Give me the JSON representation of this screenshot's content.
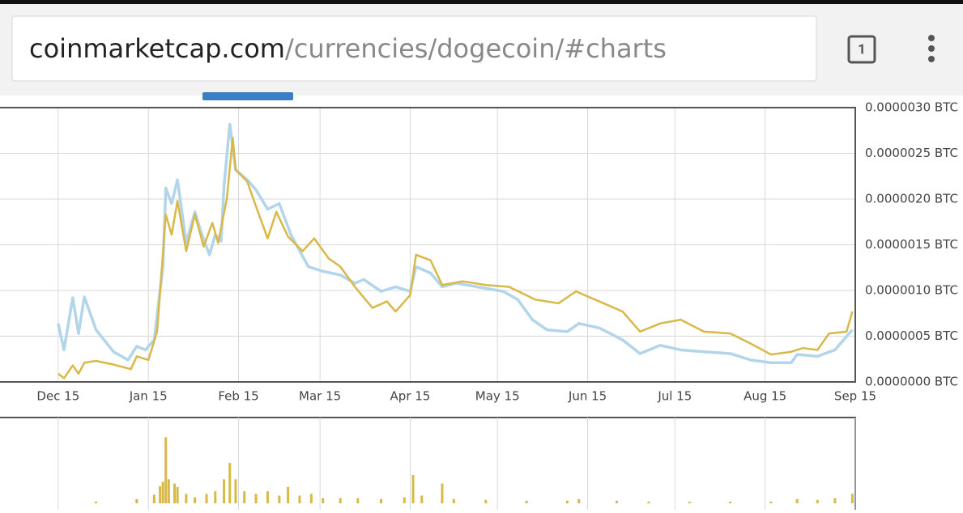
{
  "browser": {
    "url_domain": "coinmarketcap.com",
    "url_path": "/currencies/dogecoin/#charts",
    "tab_count": 1
  },
  "chart_data": [
    {
      "type": "line",
      "xlim": [
        -20,
        274
      ],
      "xticks": [
        {
          "value": 0,
          "label": "Dec 15"
        },
        {
          "value": 31,
          "label": "Jan 15"
        },
        {
          "value": 62,
          "label": "Feb 15"
        },
        {
          "value": 90,
          "label": "Mar 15"
        },
        {
          "value": 121,
          "label": "Apr 15"
        },
        {
          "value": 151,
          "label": "May 15"
        },
        {
          "value": 182,
          "label": "Jun 15"
        },
        {
          "value": 212,
          "label": "Jul 15"
        },
        {
          "value": 243,
          "label": "Aug 15"
        },
        {
          "value": 274,
          "label": "Sep 15"
        }
      ],
      "ylim": [
        0,
        3e-06
      ],
      "yticks": [
        {
          "value": 0,
          "label": "0.0000000 BTC"
        },
        {
          "value": 5e-07,
          "label": "0.0000005 BTC"
        },
        {
          "value": 1e-06,
          "label": "0.0000010 BTC"
        },
        {
          "value": 1.5e-06,
          "label": "0.0000015 BTC"
        },
        {
          "value": 2e-06,
          "label": "0.0000020 BTC"
        },
        {
          "value": 2.5e-06,
          "label": "0.0000025 BTC"
        },
        {
          "value": 3e-06,
          "label": "0.0000030 BTC"
        }
      ],
      "grid": true,
      "series": [
        {
          "color": "#b3d5ea",
          "x": [
            0,
            2,
            5,
            7,
            9,
            13,
            19,
            24,
            27,
            30,
            33,
            36,
            37,
            39,
            41,
            44,
            47,
            49,
            52,
            54,
            56,
            57,
            59,
            61,
            65,
            68,
            72,
            76,
            80,
            86,
            91,
            97,
            102,
            105,
            111,
            116,
            121,
            123,
            128,
            132,
            137,
            144,
            153,
            158,
            163,
            168,
            175,
            179,
            186,
            194,
            200,
            207,
            214,
            222,
            231,
            238,
            245,
            252,
            254,
            261,
            267,
            273
          ],
          "values": [
            6.4e-07,
            3.5e-07,
            9.2e-07,
            5.3e-07,
            9.3e-07,
            5.7e-07,
            3.3e-07,
            2.4e-07,
            3.9e-07,
            3.5e-07,
            4.6e-07,
            1.26e-06,
            2.12e-06,
            1.95e-06,
            2.21e-06,
            1.52e-06,
            1.86e-06,
            1.65e-06,
            1.39e-06,
            1.61e-06,
            1.54e-06,
            2.14e-06,
            2.82e-06,
            2.32e-06,
            2.21e-06,
            2.1e-06,
            1.89e-06,
            1.95e-06,
            1.61e-06,
            1.26e-06,
            1.21e-06,
            1.17e-06,
            1.08e-06,
            1.12e-06,
            9.9e-07,
            1.04e-06,
            9.9e-07,
            1.26e-06,
            1.19e-06,
            1.04e-06,
            1.08e-06,
            1.04e-06,
            9.9e-07,
            9e-07,
            6.8e-07,
            5.7e-07,
            5.5e-07,
            6.4e-07,
            5.9e-07,
            4.6e-07,
            3.1e-07,
            4e-07,
            3.5e-07,
            3.3e-07,
            3.1e-07,
            2.4e-07,
            2.1e-07,
            2.1e-07,
            3e-07,
            2.8e-07,
            3.5e-07,
            5.7e-07
          ]
        },
        {
          "color": "#d9b84a",
          "x": [
            0,
            2,
            5,
            7,
            9,
            13,
            19,
            25,
            27,
            31,
            34,
            37,
            39,
            41,
            44,
            47,
            50,
            53,
            55,
            58,
            60,
            61,
            65,
            68,
            72,
            75,
            79,
            84,
            88,
            93,
            97,
            102,
            108,
            113,
            116,
            121,
            123,
            128,
            132,
            139,
            147,
            155,
            164,
            172,
            178,
            186,
            194,
            200,
            207,
            214,
            222,
            231,
            238,
            245,
            252,
            256,
            261,
            265,
            271,
            273
          ],
          "values": [
            9e-08,
            4e-08,
            1.8e-07,
            9e-08,
            2.1e-07,
            2.3e-07,
            1.9e-07,
            1.4e-07,
            2.8e-07,
            2.4e-07,
            5.5e-07,
            1.83e-06,
            1.61e-06,
            1.98e-06,
            1.43e-06,
            1.83e-06,
            1.48e-06,
            1.74e-06,
            1.52e-06,
            2.01e-06,
            2.67e-06,
            2.32e-06,
            2.19e-06,
            1.92e-06,
            1.57e-06,
            1.86e-06,
            1.59e-06,
            1.43e-06,
            1.57e-06,
            1.35e-06,
            1.26e-06,
            1.04e-06,
            8.1e-07,
            8.8e-07,
            7.7e-07,
            9.5e-07,
            1.39e-06,
            1.33e-06,
            1.06e-06,
            1.1e-06,
            1.06e-06,
            1.04e-06,
            9e-07,
            8.6e-07,
            9.9e-07,
            8.8e-07,
            7.7e-07,
            5.5e-07,
            6.4e-07,
            6.8e-07,
            5.5e-07,
            5.3e-07,
            4.2e-07,
            3e-07,
            3.3e-07,
            3.7e-07,
            3.5e-07,
            5.3e-07,
            5.5e-07,
            7.7e-07
          ]
        }
      ]
    },
    {
      "type": "bar",
      "color": "#d9b84a",
      "xlim": [
        -20,
        274
      ],
      "ylim": [
        0,
        100
      ],
      "x": [
        13,
        27,
        33,
        35,
        36,
        37,
        38,
        40,
        41,
        44,
        47,
        51,
        54,
        57,
        59,
        61,
        64,
        68,
        72,
        76,
        79,
        83,
        87,
        91,
        97,
        103,
        111,
        119,
        122,
        125,
        132,
        136,
        147,
        161,
        175,
        179,
        192,
        203,
        217,
        231,
        245,
        254,
        261,
        267,
        273
      ],
      "values": [
        2,
        5,
        10,
        20,
        25,
        77,
        28,
        23,
        19,
        11,
        7,
        11,
        14,
        28,
        47,
        28,
        14,
        11,
        14,
        9,
        19,
        9,
        11,
        6,
        6,
        6,
        5,
        7,
        33,
        9,
        23,
        5,
        4,
        3,
        3,
        5,
        3,
        2,
        2,
        2,
        2,
        5,
        4,
        6,
        11
      ]
    }
  ]
}
